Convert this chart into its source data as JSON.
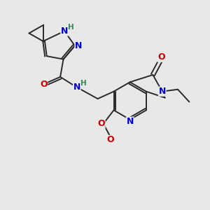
{
  "background_color": "#e8e8e8",
  "bond_color": "#2a2a2a",
  "bond_width": 1.4,
  "atom_colors": {
    "N": "#0000cc",
    "O": "#cc0000",
    "H_label": "#2e8b57"
  },
  "font_size": 9,
  "font_size_H": 7.5
}
